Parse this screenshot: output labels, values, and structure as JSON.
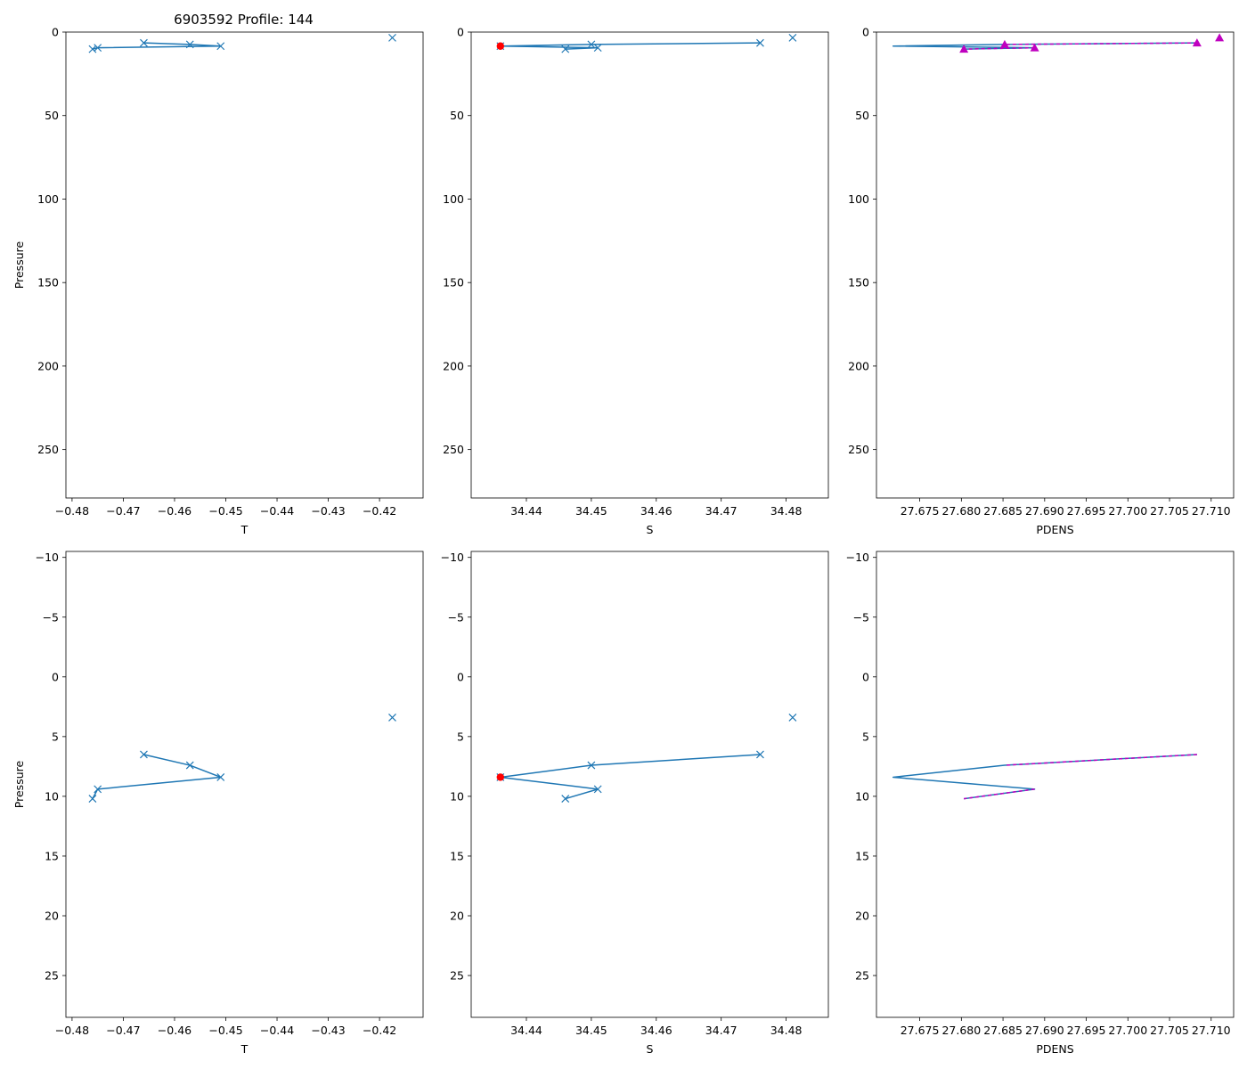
{
  "figure": {
    "title": "6903592 Profile: 144",
    "colors": {
      "line": "#1f77b4",
      "flagged": "#ff0000",
      "density_marker": "#bf00bf",
      "density_dash": "#bf00bf"
    }
  },
  "chart_data": [
    {
      "id": "top-left",
      "type": "line",
      "title": "6903592 Profile: 144",
      "xlabel": "T",
      "ylabel": "Pressure",
      "xlim": [
        -0.4812,
        -0.4115
      ],
      "ylim": [
        279,
        0
      ],
      "y_inverted": true,
      "xticks": [
        -0.48,
        -0.47,
        -0.46,
        -0.45,
        -0.44,
        -0.43,
        -0.42
      ],
      "xtick_labels": [
        "−0.48",
        "−0.47",
        "−0.46",
        "−0.45",
        "−0.44",
        "−0.43",
        "−0.42"
      ],
      "yticks": [
        0,
        50,
        100,
        150,
        200,
        250
      ],
      "ytick_labels": [
        "0",
        "50",
        "100",
        "150",
        "200",
        "250"
      ],
      "series": [
        {
          "name": "profile",
          "style": "line-x",
          "x": [
            -0.466,
            -0.457,
            -0.451,
            -0.475,
            -0.476
          ],
          "y": [
            6.5,
            7.4,
            8.4,
            9.4,
            10.2
          ]
        },
        {
          "name": "surface",
          "style": "x",
          "x": [
            -0.4175
          ],
          "y": [
            3.4
          ]
        }
      ]
    },
    {
      "id": "top-middle",
      "type": "line",
      "title": "",
      "xlabel": "S",
      "ylabel": "",
      "xlim": [
        34.4315,
        34.4865
      ],
      "ylim": [
        279,
        0
      ],
      "y_inverted": true,
      "xticks": [
        34.44,
        34.45,
        34.46,
        34.47,
        34.48
      ],
      "xtick_labels": [
        "34.44",
        "34.45",
        "34.46",
        "34.47",
        "34.48"
      ],
      "yticks": [
        0,
        50,
        100,
        150,
        200,
        250
      ],
      "ytick_labels": [
        "0",
        "50",
        "100",
        "150",
        "200",
        "250"
      ],
      "series": [
        {
          "name": "profile",
          "style": "line-x",
          "x": [
            34.476,
            34.45,
            34.436,
            34.451,
            34.446
          ],
          "y": [
            6.5,
            7.4,
            8.4,
            9.4,
            10.2
          ]
        },
        {
          "name": "surface",
          "style": "x",
          "x": [
            34.481
          ],
          "y": [
            3.4
          ]
        },
        {
          "name": "flagged",
          "style": "red-dot",
          "x": [
            34.436
          ],
          "y": [
            8.4
          ]
        }
      ]
    },
    {
      "id": "top-right",
      "type": "line",
      "title": "",
      "xlabel": "PDENS",
      "ylabel": "",
      "xlim": [
        27.6698,
        27.7127
      ],
      "ylim": [
        279,
        0
      ],
      "y_inverted": true,
      "xticks": [
        27.675,
        27.68,
        27.685,
        27.69,
        27.695,
        27.7,
        27.705,
        27.71
      ],
      "xtick_labels": [
        "27.675",
        "27.680",
        "27.685",
        "27.690",
        "27.695",
        "27.700",
        "27.705",
        "27.710"
      ],
      "yticks": [
        0,
        50,
        100,
        150,
        200,
        250
      ],
      "ytick_labels": [
        "0",
        "50",
        "100",
        "150",
        "200",
        "250"
      ],
      "series": [
        {
          "name": "profile",
          "style": "line",
          "x": [
            27.7083,
            27.6852,
            27.6718,
            27.6888,
            27.6803
          ],
          "y": [
            6.5,
            7.4,
            8.4,
            9.4,
            10.2
          ]
        },
        {
          "name": "dash-upper",
          "style": "dash",
          "x": [
            27.7083,
            27.6852
          ],
          "y": [
            6.5,
            7.4
          ]
        },
        {
          "name": "dash-lower",
          "style": "dash",
          "x": [
            27.6888,
            27.6803
          ],
          "y": [
            9.4,
            10.2
          ]
        },
        {
          "name": "markers",
          "style": "triangle",
          "x": [
            27.711,
            27.7083,
            27.6852,
            27.6888,
            27.6803
          ],
          "y": [
            3.4,
            6.5,
            7.4,
            9.4,
            10.2
          ]
        }
      ]
    },
    {
      "id": "bottom-left",
      "type": "line",
      "title": "",
      "xlabel": "T",
      "ylabel": "Pressure",
      "xlim": [
        -0.4812,
        -0.4115
      ],
      "ylim": [
        28.5,
        -10.5
      ],
      "y_inverted": true,
      "xticks": [
        -0.48,
        -0.47,
        -0.46,
        -0.45,
        -0.44,
        -0.43,
        -0.42
      ],
      "xtick_labels": [
        "−0.48",
        "−0.47",
        "−0.46",
        "−0.45",
        "−0.44",
        "−0.43",
        "−0.42"
      ],
      "yticks": [
        -10,
        -5,
        0,
        5,
        10,
        15,
        20,
        25
      ],
      "ytick_labels": [
        "−10",
        "−5",
        "0",
        "5",
        "10",
        "15",
        "20",
        "25"
      ],
      "series": [
        {
          "name": "profile",
          "style": "line-x",
          "x": [
            -0.466,
            -0.457,
            -0.451,
            -0.475,
            -0.476
          ],
          "y": [
            6.5,
            7.4,
            8.4,
            9.4,
            10.2
          ]
        },
        {
          "name": "surface",
          "style": "x",
          "x": [
            -0.4175
          ],
          "y": [
            3.4
          ]
        }
      ]
    },
    {
      "id": "bottom-middle",
      "type": "line",
      "title": "",
      "xlabel": "S",
      "ylabel": "",
      "xlim": [
        34.4315,
        34.4865
      ],
      "ylim": [
        28.5,
        -10.5
      ],
      "y_inverted": true,
      "xticks": [
        34.44,
        34.45,
        34.46,
        34.47,
        34.48
      ],
      "xtick_labels": [
        "34.44",
        "34.45",
        "34.46",
        "34.47",
        "34.48"
      ],
      "yticks": [
        -10,
        -5,
        0,
        5,
        10,
        15,
        20,
        25
      ],
      "ytick_labels": [
        "−10",
        "−5",
        "0",
        "5",
        "10",
        "15",
        "20",
        "25"
      ],
      "series": [
        {
          "name": "profile",
          "style": "line-x",
          "x": [
            34.476,
            34.45,
            34.436,
            34.451,
            34.446
          ],
          "y": [
            6.5,
            7.4,
            8.4,
            9.4,
            10.2
          ]
        },
        {
          "name": "surface",
          "style": "x",
          "x": [
            34.481
          ],
          "y": [
            3.4
          ]
        },
        {
          "name": "flagged",
          "style": "red-dot",
          "x": [
            34.436
          ],
          "y": [
            8.4
          ]
        }
      ]
    },
    {
      "id": "bottom-right",
      "type": "line",
      "title": "",
      "xlabel": "PDENS",
      "ylabel": "",
      "xlim": [
        27.6698,
        27.7127
      ],
      "ylim": [
        28.5,
        -10.5
      ],
      "y_inverted": true,
      "xticks": [
        27.675,
        27.68,
        27.685,
        27.69,
        27.695,
        27.7,
        27.705,
        27.71
      ],
      "xtick_labels": [
        "27.675",
        "27.680",
        "27.685",
        "27.690",
        "27.695",
        "27.700",
        "27.705",
        "27.710"
      ],
      "yticks": [
        -10,
        -5,
        0,
        5,
        10,
        15,
        20,
        25
      ],
      "ytick_labels": [
        "−10",
        "−5",
        "0",
        "5",
        "10",
        "15",
        "20",
        "25"
      ],
      "series": [
        {
          "name": "profile",
          "style": "line",
          "x": [
            27.7083,
            27.6852,
            27.6718,
            27.6888,
            27.6803
          ],
          "y": [
            6.5,
            7.4,
            8.4,
            9.4,
            10.2
          ]
        },
        {
          "name": "dash-upper",
          "style": "dash",
          "x": [
            27.7083,
            27.6852
          ],
          "y": [
            6.5,
            7.4
          ]
        },
        {
          "name": "dash-lower",
          "style": "dash",
          "x": [
            27.6888,
            27.6803
          ],
          "y": [
            9.4,
            10.2
          ]
        }
      ]
    }
  ]
}
